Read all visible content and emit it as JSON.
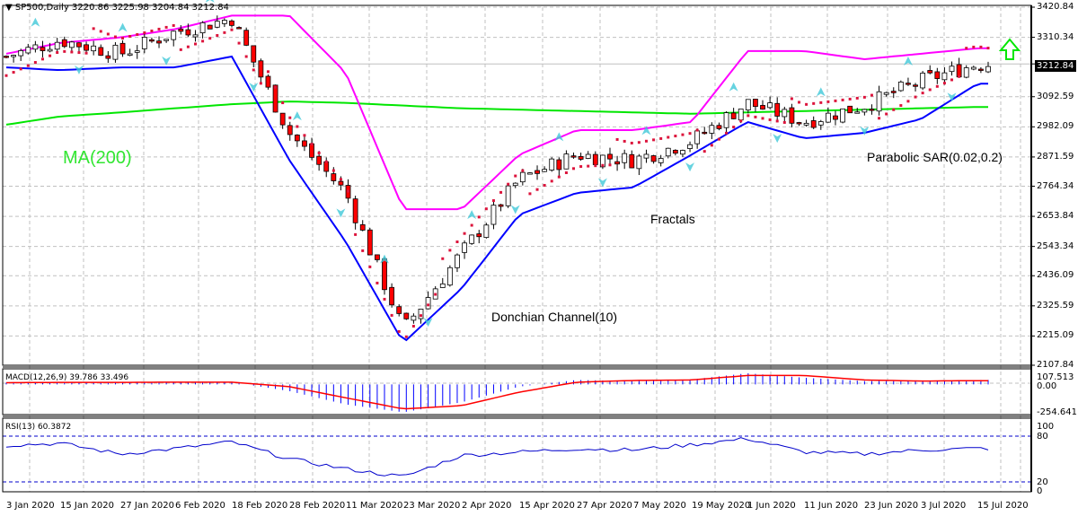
{
  "header": {
    "symbol_label": "SP500,Daily",
    "ohlc": "3220.86 3225.98 3204.84 3212.84",
    "menu_icon": "triangle-down-icon"
  },
  "current_price": "3212.84",
  "annotations": {
    "ma": "MA(200)",
    "donchian": "Donchian Channel(10)",
    "fractals": "Fractals",
    "psar": "Parabolic SAR(0.02,0.2)"
  },
  "signal_icon": "green-up-arrow-icon",
  "colors": {
    "ma": "#00e600",
    "donchian_upper": "#ff00ff",
    "donchian_lower": "#0000ff",
    "psar": "#dc143c",
    "fractal": "#40c8d8",
    "bear": "#ff0000",
    "bull": "#ffffff",
    "macd_hist": "#0000ff",
    "macd_signal": "#ff0000",
    "rsi": "#0000cc",
    "grid": "#c0c0c0",
    "signal_arrow": "#00ff00"
  },
  "price_axis": [
    "3420.84",
    "3310.34",
    "3212.84",
    "3092.59",
    "2982.09",
    "2871.59",
    "2764.34",
    "2653.84",
    "2543.34",
    "2436.09",
    "2325.59",
    "2215.09",
    "2107.84"
  ],
  "macd_panel": {
    "label": "MACD(12,26,9) 39.786 33.496",
    "axis": [
      "107.513",
      "0.00",
      "-254.641"
    ]
  },
  "rsi_panel": {
    "label": "RSI(13) 60.3872",
    "axis": [
      "100",
      "80",
      "20",
      "0"
    ]
  },
  "x_axis": [
    "3 Jan 2020",
    "15 Jan 2020",
    "27 Jan 2020",
    "6 Feb 2020",
    "18 Feb 2020",
    "28 Feb 2020",
    "11 Mar 2020",
    "23 Mar 2020",
    "2 Apr 2020",
    "15 Apr 2020",
    "27 Apr 2020",
    "7 May 2020",
    "19 May 2020",
    "1 Jun 2020",
    "11 Jun 2020",
    "23 Jun 2020",
    "3 Jul 2020",
    "15 Jul 2020"
  ],
  "chart_data": [
    {
      "type": "candlestick",
      "title": "SP500,Daily",
      "xlabel": "",
      "ylabel": "Price",
      "ylim": [
        2107.84,
        3420.84
      ],
      "grid": true,
      "x": [
        "3 Jan 2020",
        "15 Jan 2020",
        "27 Jan 2020",
        "6 Feb 2020",
        "18 Feb 2020",
        "28 Feb 2020",
        "11 Mar 2020",
        "23 Mar 2020",
        "2 Apr 2020",
        "15 Apr 2020",
        "27 Apr 2020",
        "7 May 2020",
        "19 May 2020",
        "1 Jun 2020",
        "11 Jun 2020",
        "23 Jun 2020",
        "3 Jul 2020",
        "15 Jul 2020"
      ],
      "close_approx": [
        3240,
        3300,
        3250,
        3330,
        3380,
        2960,
        2740,
        2240,
        2520,
        2790,
        2880,
        2860,
        2930,
        3070,
        3000,
        3060,
        3150,
        3212.84
      ],
      "last_ohlc": {
        "open": 3220.86,
        "high": 3225.98,
        "low": 3204.84,
        "close": 3212.84
      },
      "series": [
        {
          "name": "MA(200)",
          "values": [
            2990,
            3020,
            3035,
            3050,
            3065,
            3075,
            3070,
            3060,
            3050,
            3045,
            3040,
            3035,
            3030,
            3035,
            3040,
            3045,
            3050,
            3055
          ]
        },
        {
          "name": "Donchian Upper(10)",
          "values": [
            3250,
            3290,
            3310,
            3340,
            3390,
            3390,
            3180,
            2680,
            2680,
            2880,
            2970,
            2970,
            3000,
            3260,
            3260,
            3230,
            3250,
            3270
          ]
        },
        {
          "name": "Donchian Lower(10)",
          "values": [
            3200,
            3190,
            3200,
            3200,
            3240,
            2860,
            2560,
            2190,
            2390,
            2660,
            2740,
            2760,
            2880,
            3000,
            2940,
            2960,
            3010,
            3140
          ]
        }
      ],
      "legend": [
        "MA(200)",
        "Donchian Channel(10)",
        "Fractals",
        "Parabolic SAR(0.02,0.2)"
      ]
    },
    {
      "type": "bar",
      "title": "MACD(12,26,9) 39.786 33.496",
      "ylim": [
        -254.641,
        107.513
      ],
      "x": [
        "3 Jan 2020",
        "15 Jan 2020",
        "27 Jan 2020",
        "6 Feb 2020",
        "18 Feb 2020",
        "28 Feb 2020",
        "11 Mar 2020",
        "23 Mar 2020",
        "2 Apr 2020",
        "15 Apr 2020",
        "27 Apr 2020",
        "7 May 2020",
        "19 May 2020",
        "1 Jun 2020",
        "11 Jun 2020",
        "23 Jun 2020",
        "3 Jul 2020",
        "15 Jul 2020"
      ],
      "series": [
        {
          "name": "MACD",
          "values": [
            15,
            20,
            18,
            22,
            20,
            -60,
            -180,
            -250,
            -160,
            -20,
            40,
            30,
            45,
            100,
            60,
            30,
            30,
            39.786
          ]
        },
        {
          "name": "Signal",
          "values": [
            15,
            18,
            18,
            20,
            20,
            -20,
            -120,
            -220,
            -190,
            -70,
            20,
            35,
            40,
            80,
            80,
            40,
            30,
            33.496
          ]
        }
      ]
    },
    {
      "type": "line",
      "title": "RSI(13) 60.3872",
      "ylim": [
        0,
        100
      ],
      "levels": [
        20,
        80
      ],
      "x": [
        "3 Jan 2020",
        "15 Jan 2020",
        "27 Jan 2020",
        "6 Feb 2020",
        "18 Feb 2020",
        "28 Feb 2020",
        "11 Mar 2020",
        "23 Mar 2020",
        "2 Apr 2020",
        "15 Apr 2020",
        "27 Apr 2020",
        "7 May 2020",
        "19 May 2020",
        "1 Jun 2020",
        "11 Jun 2020",
        "23 Jun 2020",
        "3 Jul 2020",
        "15 Jul 2020"
      ],
      "series": [
        {
          "name": "RSI(13)",
          "values": [
            65,
            68,
            52,
            60,
            70,
            45,
            30,
            18,
            50,
            55,
            60,
            58,
            66,
            75,
            55,
            52,
            58,
            60.3872
          ]
        }
      ]
    }
  ]
}
